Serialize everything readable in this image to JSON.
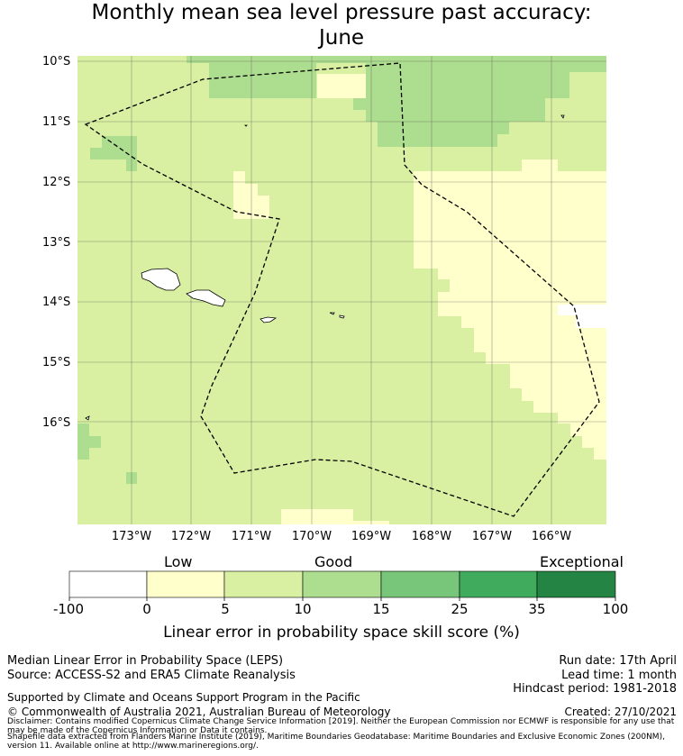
{
  "title_line1": "Monthly mean sea level pressure past accuracy:",
  "title_line2": "June",
  "map": {
    "lat_labels": [
      "10°S",
      "11°S",
      "12°S",
      "13°S",
      "14°S",
      "15°S",
      "16°S"
    ],
    "lon_labels": [
      "173°W",
      "172°W",
      "171°W",
      "170°W",
      "169°W",
      "168°W",
      "167°W",
      "166°W"
    ],
    "colors": {
      "c0_5": "#ffffcc",
      "c5_10": "#d9f0a3",
      "c10_15": "#addd8e",
      "c15_25": "#78c679",
      "c25_35": "#41ab5d",
      "c35_100": "#238443",
      "grid": "#555555",
      "land": "#ffffff"
    }
  },
  "colorbar": {
    "categories": [
      "Low",
      "Good",
      "Exceptional"
    ],
    "ticks": [
      "-100",
      "0",
      "5",
      "10",
      "15",
      "25",
      "35",
      "100"
    ],
    "label": "Linear error in probability space skill score (%)",
    "colors": [
      "#ffffff",
      "#ffffcc",
      "#d9f0a3",
      "#addd8e",
      "#78c679",
      "#41ab5d",
      "#238443"
    ]
  },
  "info": {
    "line1": "Median Linear Error in Probability Space (LEPS)",
    "line2": "Source: ACCESS-S2 and ERA5 Climate Reanalysis",
    "run_date": "Run date: 17th April",
    "lead_time": "Lead time: 1 month",
    "hindcast": "Hindcast period: 1981-2018",
    "supported": "Supported by Climate and Oceans Support Program in the Pacific",
    "copyright": "© Commonwealth of Australia 2021, Australian Bureau of Meteorology",
    "created": "Created: 27/10/2021",
    "disclaimer": "Disclaimer: Contains modified Copernicus Climate Change Service Information [2019]. Neither the European Commission nor ECMWF is responsible for any use that may be made of the Copernicus Information or Data it contains.",
    "shapefile": "Shapefile data extracted from Flanders Marine Institute (2019), Maritime Boundaries Geodatabase: Maritime Boundaries and Exclusive Economic Zones (200NM), version 11. Available online at http://www.marineregions.org/."
  }
}
